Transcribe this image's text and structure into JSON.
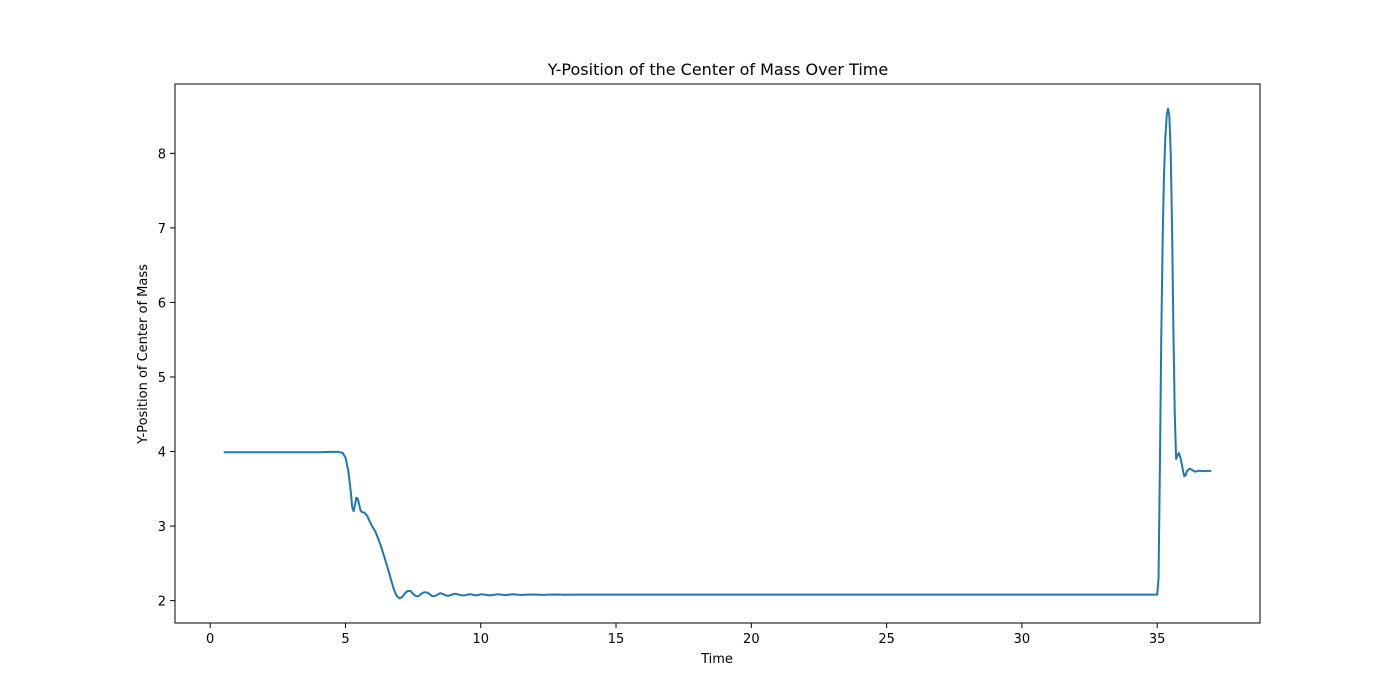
{
  "chart_data": {
    "type": "line",
    "title": "Y-Position of the Center of Mass Over Time",
    "xlabel": "Time",
    "ylabel": "Y-Position of Center of Mass",
    "xlim": [
      -1.3,
      38.8
    ],
    "ylim": [
      1.7,
      8.93
    ],
    "xticks": [
      0,
      5,
      10,
      15,
      20,
      25,
      30,
      35
    ],
    "yticks": [
      2,
      3,
      4,
      5,
      6,
      7,
      8
    ],
    "grid": false,
    "color": "#1f77b4",
    "series": [
      {
        "x": [
          0.5,
          1,
          2,
          3,
          4,
          4.5,
          4.75,
          4.9,
          5.0,
          5.1,
          5.2,
          5.25,
          5.3,
          5.35,
          5.4,
          5.45,
          5.5,
          5.55,
          5.6,
          5.7,
          5.8,
          5.9,
          6.0,
          6.1,
          6.2,
          6.3,
          6.4,
          6.5,
          6.6,
          6.7,
          6.8,
          6.9,
          7.0,
          7.1,
          7.2,
          7.3,
          7.4,
          7.5,
          7.6,
          7.7,
          7.8,
          7.9,
          8.0,
          8.1,
          8.2,
          8.3,
          8.4,
          8.5,
          8.6,
          8.7,
          8.8,
          8.9,
          9.0,
          9.1,
          9.2,
          9.3,
          9.4,
          9.5,
          9.6,
          9.7,
          9.8,
          9.9,
          10.0,
          10.15,
          10.3,
          10.45,
          10.6,
          10.75,
          10.9,
          11.05,
          11.2,
          11.35,
          11.5,
          11.7,
          11.9,
          12.1,
          12.3,
          12.5,
          12.8,
          13.1,
          13.5,
          14,
          15,
          20,
          25,
          30,
          34.5,
          35.0,
          35.05,
          35.1,
          35.15,
          35.2,
          35.25,
          35.3,
          35.35,
          35.4,
          35.45,
          35.5,
          35.55,
          35.6,
          35.65,
          35.7,
          35.75,
          35.8,
          35.85,
          35.9,
          35.95,
          36.0,
          36.05,
          36.1,
          36.2,
          36.3,
          36.4,
          36.5,
          36.6,
          36.7,
          36.8,
          36.9,
          37.0
        ],
        "y": [
          3.99,
          3.99,
          3.99,
          3.99,
          3.99,
          3.995,
          3.995,
          3.98,
          3.92,
          3.75,
          3.45,
          3.25,
          3.2,
          3.28,
          3.38,
          3.37,
          3.3,
          3.22,
          3.19,
          3.18,
          3.14,
          3.06,
          2.99,
          2.93,
          2.84,
          2.74,
          2.63,
          2.51,
          2.39,
          2.26,
          2.14,
          2.06,
          2.03,
          2.05,
          2.1,
          2.13,
          2.13,
          2.09,
          2.06,
          2.06,
          2.09,
          2.11,
          2.11,
          2.09,
          2.06,
          2.06,
          2.08,
          2.1,
          2.09,
          2.07,
          2.065,
          2.075,
          2.09,
          2.09,
          2.08,
          2.07,
          2.07,
          2.08,
          2.085,
          2.08,
          2.07,
          2.075,
          2.085,
          2.08,
          2.07,
          2.075,
          2.085,
          2.08,
          2.075,
          2.08,
          2.085,
          2.08,
          2.075,
          2.08,
          2.083,
          2.08,
          2.077,
          2.08,
          2.082,
          2.079,
          2.08,
          2.08,
          2.08,
          2.08,
          2.08,
          2.08,
          2.08,
          2.08,
          2.3,
          3.8,
          5.5,
          6.8,
          7.7,
          8.2,
          8.5,
          8.6,
          8.5,
          8.0,
          7.0,
          5.6,
          4.5,
          3.9,
          3.95,
          3.98,
          3.93,
          3.85,
          3.75,
          3.67,
          3.68,
          3.74,
          3.77,
          3.75,
          3.73,
          3.74,
          3.74,
          3.735,
          3.74,
          3.74,
          3.74
        ]
      }
    ]
  }
}
